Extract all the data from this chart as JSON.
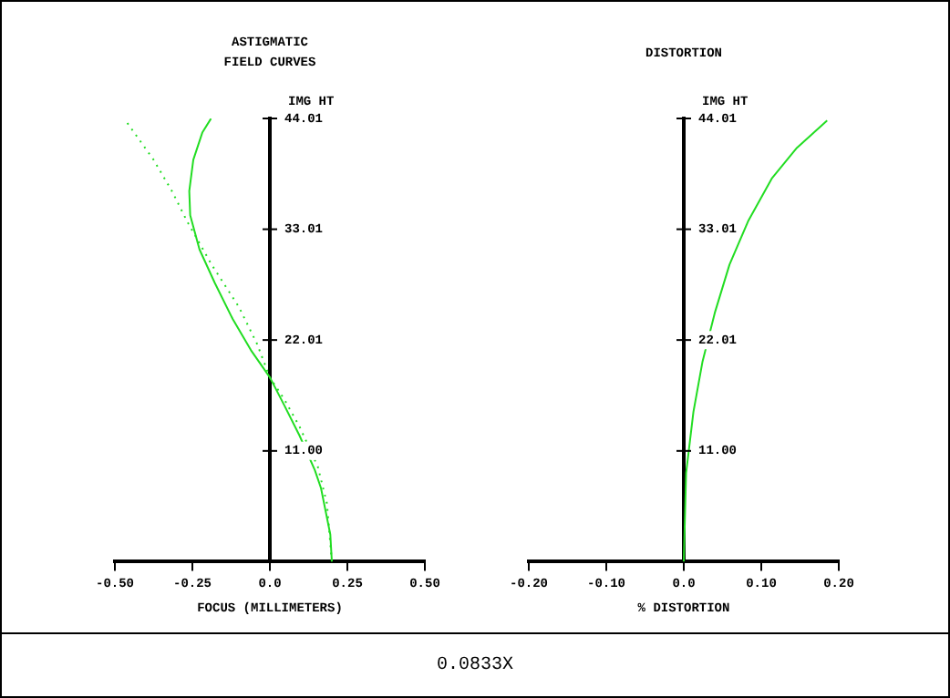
{
  "chart_data": [
    {
      "type": "line",
      "title": "ASTIGMATIC\nFIELD CURVES",
      "xlabel": "FOCUS (MILLIMETERS)",
      "ylabel": "IMG HT",
      "annotations": [
        "0.0833X"
      ],
      "xlim": [
        -0.5,
        0.5
      ],
      "xticks": [
        {
          "value": -0.5,
          "label": "-0.50"
        },
        -0.25,
        {
          "value": 0,
          "label": "0.0"
        },
        0.25,
        {
          "value": 0.5,
          "label": "0.50"
        }
      ],
      "ylim": [
        0,
        44.01
      ],
      "yticks": [
        {
          "value": 11,
          "label": "11.00"
        },
        22.01,
        33.01,
        44.01
      ],
      "grid": false,
      "legend": false,
      "marker": "none",
      "series": [
        {
          "color": "#22dd22",
          "line_style": "solid",
          "x": [
            0.2,
            0.195,
            0.165,
            0.145,
            0.096,
            0.047,
            0,
            -0.061,
            -0.12,
            -0.178,
            -0.227,
            -0.257,
            -0.26,
            -0.247,
            -0.218,
            -0.19
          ],
          "values": [
            0,
            2.7,
            7.3,
            9.1,
            12.5,
            15.5,
            18.3,
            21,
            24.1,
            27.7,
            31,
            34.4,
            36.8,
            39.9,
            42.6,
            44
          ]
        },
        {
          "color": "#22dd22",
          "line_style": "dotted",
          "x": [
            0.2,
            0.184,
            0.155,
            0.096,
            0.047,
            0,
            -0.041,
            -0.1,
            -0.188,
            -0.267,
            -0.316,
            -0.375,
            -0.47
          ],
          "values": [
            0,
            5.8,
            9.4,
            13.4,
            16.1,
            18.3,
            21.6,
            25.3,
            29.5,
            33.8,
            36.8,
            39.9,
            44
          ]
        }
      ]
    },
    {
      "type": "line",
      "title": "DISTORTION",
      "xlabel": "% DISTORTION",
      "ylabel": "IMG HT",
      "xlim": [
        -0.2,
        0.2
      ],
      "xticks": [
        {
          "value": -0.2,
          "label": "-0.20"
        },
        {
          "value": -0.1,
          "label": "-0.10"
        },
        {
          "value": 0,
          "label": "0.0"
        },
        {
          "value": 0.1,
          "label": "0.10"
        },
        {
          "value": 0.2,
          "label": "0.20"
        }
      ],
      "ylim": [
        0,
        44.01
      ],
      "yticks": [
        {
          "value": 11,
          "label": "11.00"
        },
        22.01,
        33.01,
        44.01
      ],
      "grid": false,
      "legend": false,
      "marker": "none",
      "series": [
        {
          "color": "#22dd22",
          "line_style": "solid",
          "x": [
            0,
            0.003,
            0.0125,
            0.024,
            0.04,
            0.059,
            0.083,
            0.114,
            0.146,
            0.185
          ],
          "values": [
            0,
            8.8,
            14.9,
            19.8,
            24.7,
            29.5,
            33.8,
            38.1,
            41.1,
            43.8
          ]
        }
      ]
    }
  ]
}
